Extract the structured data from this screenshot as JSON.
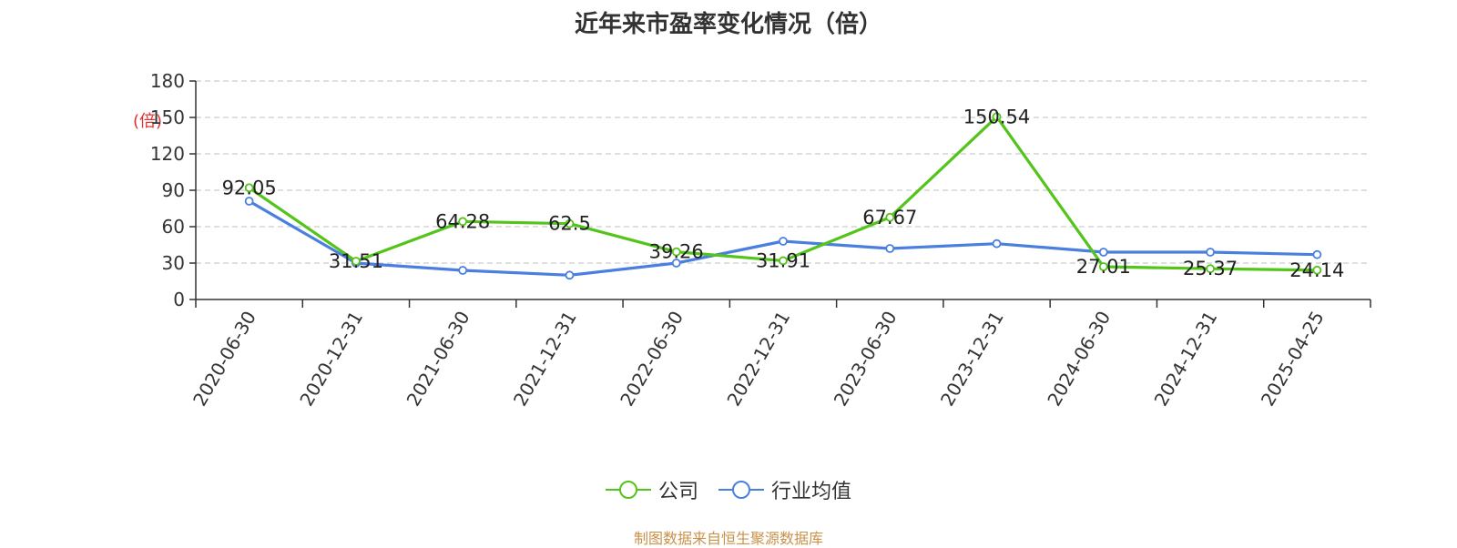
{
  "chart_data": {
    "type": "line",
    "title": "近年来市盈率变化情况（倍）",
    "ylabel": "(倍)",
    "xlabel": "",
    "ylim": [
      0,
      180
    ],
    "yticks": [
      0,
      30,
      60,
      90,
      120,
      150,
      180
    ],
    "grid": true,
    "legend_position": "bottom",
    "categories": [
      "2020-06-30",
      "2020-12-31",
      "2021-06-30",
      "2021-12-31",
      "2022-06-30",
      "2022-12-31",
      "2023-06-30",
      "2023-12-31",
      "2024-06-30",
      "2024-12-31",
      "2025-04-25"
    ],
    "series": [
      {
        "name": "公司",
        "color": "#52c41a",
        "values": [
          92.05,
          31.51,
          64.28,
          62.5,
          39.26,
          31.91,
          67.67,
          150.54,
          27.01,
          25.37,
          24.14
        ],
        "labels": [
          "92.05",
          "31.51",
          "64.28",
          "62.5",
          "39.26",
          "31.91",
          "67.67",
          "150.54",
          "27.01",
          "25.37",
          "24.14"
        ]
      },
      {
        "name": "行业均值",
        "color": "#4a7fe0",
        "values": [
          81,
          30,
          24,
          20,
          30,
          48,
          42,
          46,
          39,
          39,
          37
        ]
      }
    ]
  },
  "source": "制图数据来自恒生聚源数据库"
}
